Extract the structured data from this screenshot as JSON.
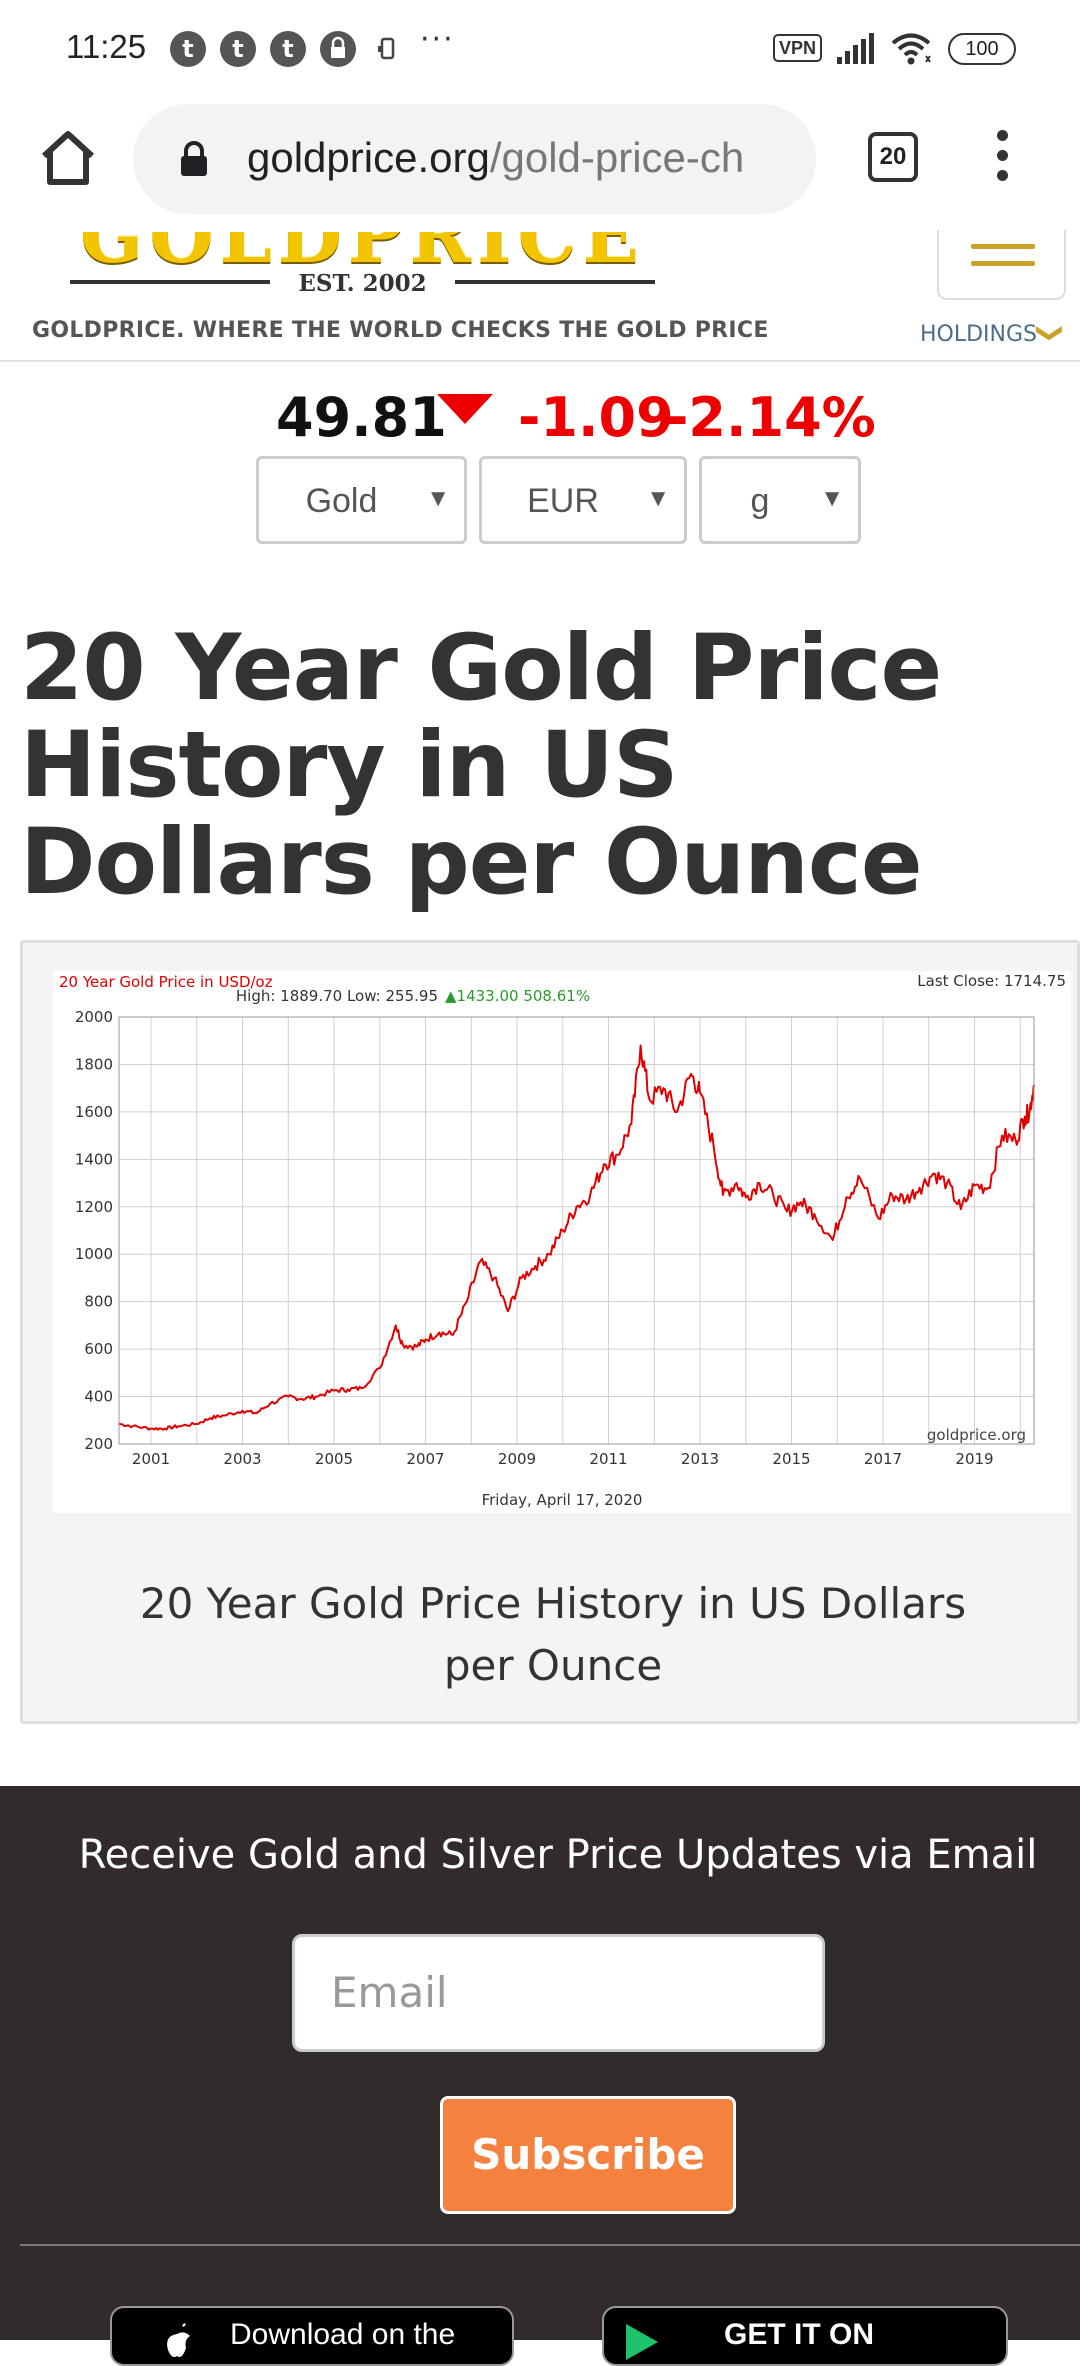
{
  "status_bar": {
    "time": "11:25",
    "notifications": [
      "t",
      "t",
      "t"
    ],
    "more": "···",
    "vpn_label": "VPN",
    "battery": "100"
  },
  "browser": {
    "url_domain": "goldprice.org",
    "url_path": "/gold-price-ch",
    "tab_count": "20"
  },
  "site": {
    "logo_word": "GOLDPRICE",
    "logo_est": "EST. 2002",
    "tagline": "GOLDPRICE.  WHERE THE WORLD CHECKS THE GOLD PRICE",
    "holdings_label": "HOLDINGS",
    "holdings_chevron": "❯"
  },
  "ticker": {
    "price": "49.81",
    "change": "-1.09",
    "change_pct": "-2.14%",
    "direction": "down",
    "metal_select": "Gold",
    "currency_select": "EUR",
    "unit_select": "g",
    "select_arrow": "▼"
  },
  "page": {
    "title": "20 Year Gold Price History in US Dollars per Ounce"
  },
  "chart_data": {
    "type": "line",
    "title": "20 Year Gold Price in USD/oz",
    "last_close_label": "Last Close: 1714.75",
    "stats_label": "High: 1889.70 Low: 255.95",
    "gain_label": "▲1433.00 508.61%",
    "watermark": "goldprice.org",
    "date_label": "Friday, April 17, 2020",
    "xlabel": "",
    "ylabel": "",
    "ylim": [
      200,
      2000
    ],
    "xlim": [
      2000.3,
      2020.3
    ],
    "yticks": [
      200,
      400,
      600,
      800,
      1000,
      1200,
      1400,
      1600,
      1800,
      2000
    ],
    "xticks": [
      "2001",
      "2003",
      "2005",
      "2007",
      "2009",
      "2011",
      "2013",
      "2015",
      "2017",
      "2019"
    ],
    "grid": true,
    "line_color": "#e00000",
    "series": [
      {
        "x": [
          2000.3,
          2000.6,
          2001.0,
          2001.3,
          2001.6,
          2002.0,
          2002.3,
          2002.6,
          2003.0,
          2003.3,
          2003.6,
          2004.0,
          2004.3,
          2004.6,
          2005.0,
          2005.3,
          2005.6,
          2006.0,
          2006.35,
          2006.5,
          2006.8,
          2007.0,
          2007.3,
          2007.6,
          2007.9,
          2008.2,
          2008.5,
          2008.8,
          2009.1,
          2009.4,
          2009.7,
          2010.0,
          2010.3,
          2010.6,
          2010.9,
          2011.2,
          2011.5,
          2011.7,
          2011.9,
          2012.2,
          2012.5,
          2012.8,
          2013.0,
          2013.3,
          2013.5,
          2013.8,
          2014.0,
          2014.3,
          2014.6,
          2014.9,
          2015.2,
          2015.5,
          2015.9,
          2016.2,
          2016.5,
          2016.9,
          2017.2,
          2017.5,
          2017.8,
          2018.1,
          2018.4,
          2018.7,
          2019.0,
          2019.3,
          2019.6,
          2019.9,
          2020.1,
          2020.2,
          2020.3
        ],
        "y": [
          285,
          275,
          265,
          265,
          275,
          285,
          310,
          320,
          340,
          330,
          370,
          400,
          390,
          400,
          425,
          430,
          435,
          520,
          700,
          620,
          610,
          640,
          670,
          660,
          800,
          970,
          900,
          760,
          900,
          950,
          1000,
          1100,
          1200,
          1250,
          1380,
          1420,
          1550,
          1880,
          1650,
          1700,
          1600,
          1760,
          1680,
          1450,
          1250,
          1300,
          1240,
          1300,
          1250,
          1180,
          1220,
          1170,
          1060,
          1240,
          1320,
          1150,
          1250,
          1230,
          1280,
          1340,
          1300,
          1190,
          1290,
          1280,
          1500,
          1480,
          1580,
          1600,
          1714
        ]
      }
    ]
  },
  "chart_caption": "20 Year Gold Price History in US Dollars per Ounce",
  "newsletter": {
    "heading": "Receive Gold and Silver Price Updates via Email",
    "email_placeholder": "Email",
    "subscribe_label": "Subscribe",
    "app_store_label": "Download on the",
    "play_store_label": "GET IT ON"
  }
}
